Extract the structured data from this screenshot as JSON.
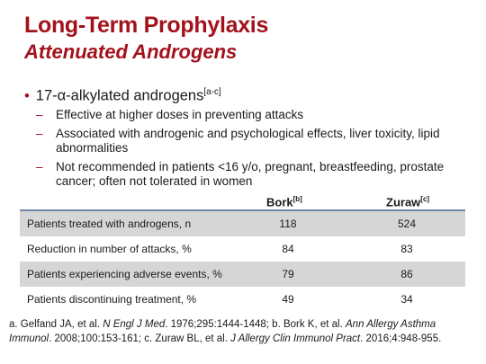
{
  "slide": {
    "title": "Long-Term Prophylaxis",
    "subtitle": "Attenuated Androgens"
  },
  "bullets": {
    "main": "17-α-alkylated androgens",
    "main_ref": "[a-c]",
    "subs": [
      "Effective at higher doses in preventing attacks",
      "Associated with androgenic and psychological effects, liver toxicity, lipid abnormalities",
      "Not recommended in patients <16 y/o, pregnant, breastfeeding, prostate cancer; often not tolerated in women"
    ]
  },
  "table": {
    "columns": [
      {
        "name": "Bork",
        "ref": "[b]"
      },
      {
        "name": "Zuraw",
        "ref": "[c]"
      }
    ],
    "rows": [
      {
        "label": "Patients treated with androgens, n",
        "bork": "118",
        "zuraw": "524"
      },
      {
        "label": "Reduction in number of attacks, %",
        "bork": "84",
        "zuraw": "83"
      },
      {
        "label": "Patients experiencing adverse events, %",
        "bork": "79",
        "zuraw": "86"
      },
      {
        "label": "Patients discontinuing treatment, %",
        "bork": "49",
        "zuraw": "34"
      }
    ]
  },
  "references": {
    "a_prefix": "a. Gelfand JA, et al. ",
    "a_journal": "N Engl J Med",
    "a_suffix": ". 1976;295:1444-1448; b. Bork K, et al. ",
    "b_journal": "Ann Allergy Asthma Immunol",
    "b_suffix": ". 2008;100:153-161; c. Zuraw BL, et al. ",
    "c_journal": "J Allergy Clin Immunol Pract",
    "c_suffix": ". 2016;4:948-955."
  }
}
